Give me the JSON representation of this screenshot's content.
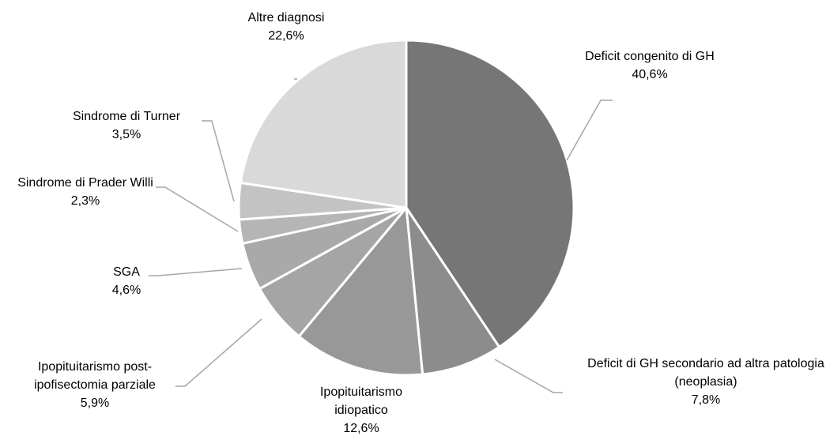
{
  "chart_data": {
    "type": "pie",
    "categories": [
      "Deficit congenito di GH",
      "Deficit di GH secondario ad altra patologia (neoplasia)",
      "Ipopituitarismo idiopatico",
      "Ipopituitarismo post-ipofisectomia parziale",
      "SGA",
      "Sindrome di Prader Willi",
      "Sindrome di Turner",
      "Altre diagnosi"
    ],
    "values": [
      40.6,
      7.8,
      12.6,
      5.9,
      4.6,
      2.3,
      3.5,
      22.6
    ],
    "value_labels": [
      "40,6%",
      "7,8%",
      "12,6%",
      "5,9%",
      "4,6%",
      "2,3%",
      "3,5%",
      "22,6%"
    ],
    "colors": [
      "#767676",
      "#8c8c8c",
      "#989898",
      "#a5a5a5",
      "#a9a9a9",
      "#b5b5b5",
      "#c3c3c3",
      "#d9d9d9"
    ]
  }
}
